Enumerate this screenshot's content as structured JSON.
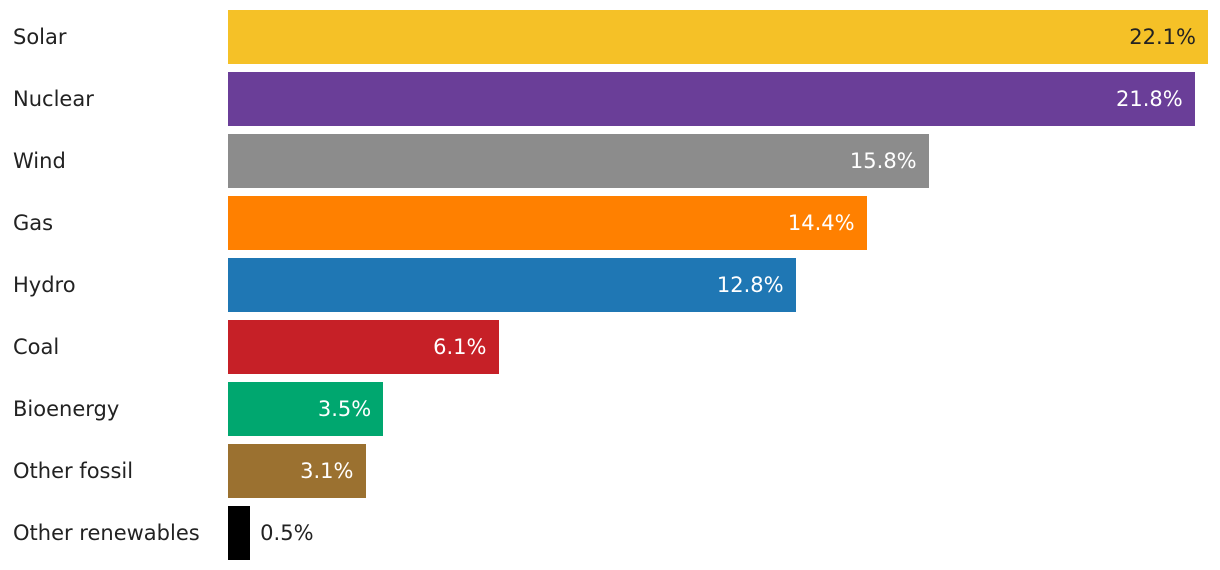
{
  "chart_data": {
    "type": "bar",
    "orientation": "horizontal",
    "title": "",
    "xlabel": "",
    "ylabel": "",
    "xlim": [
      0,
      22.5
    ],
    "grid": false,
    "legend": "none",
    "categories": [
      "Solar",
      "Nuclear",
      "Wind",
      "Gas",
      "Hydro",
      "Coal",
      "Bioenergy",
      "Other fossil",
      "Other renewables"
    ],
    "values": [
      22.1,
      21.8,
      15.8,
      14.4,
      12.8,
      6.1,
      3.5,
      3.1,
      0.5
    ],
    "value_labels": [
      "22.1%",
      "21.8%",
      "15.8%",
      "14.4%",
      "12.8%",
      "6.1%",
      "3.5%",
      "3.1%",
      "0.5%"
    ],
    "colors": [
      "#F5C127",
      "#6A3E98",
      "#8C8C8C",
      "#FF8000",
      "#1F77B4",
      "#C62027",
      "#00A76F",
      "#9B7130",
      "#000000"
    ],
    "label_colors": [
      "#222222",
      "#ffffff",
      "#ffffff",
      "#ffffff",
      "#ffffff",
      "#ffffff",
      "#ffffff",
      "#ffffff",
      "#222222"
    ],
    "label_inside": [
      true,
      true,
      true,
      true,
      true,
      true,
      true,
      true,
      false
    ]
  }
}
